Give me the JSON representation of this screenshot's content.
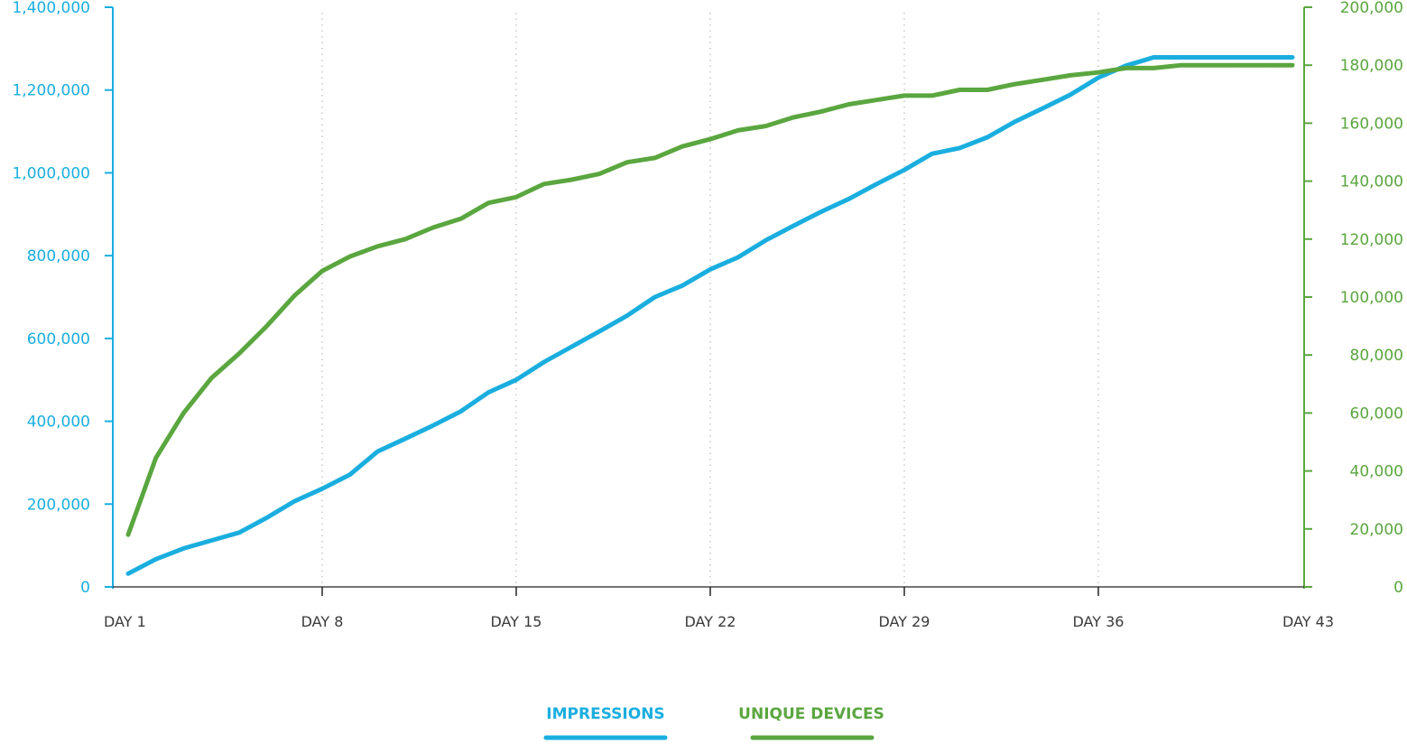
{
  "colors": {
    "impressions": "#1aaedf",
    "unique_devices": "#5aa63f",
    "axis_x_text": "#3a3a3a",
    "grid": "#bbbbbb"
  },
  "legend": {
    "impressions": "IMPRESSIONS",
    "unique_devices": "UNIQUE DEVICES"
  },
  "chart_data": {
    "type": "line",
    "title": "",
    "xlabel": "",
    "grid": "vertical dotted",
    "legend_position": "bottom",
    "x": [
      1,
      2,
      3,
      4,
      5,
      6,
      7,
      8,
      9,
      10,
      11,
      12,
      13,
      14,
      15,
      16,
      17,
      18,
      19,
      20,
      21,
      22,
      23,
      24,
      25,
      26,
      27,
      28,
      29,
      30,
      31,
      32,
      33,
      34,
      35,
      36,
      37,
      38,
      39,
      40,
      41,
      42,
      43
    ],
    "x_ticks": [
      {
        "day": 1,
        "label": "DAY 1"
      },
      {
        "day": 8,
        "label": "DAY 8"
      },
      {
        "day": 15,
        "label": "DAY 15"
      },
      {
        "day": 22,
        "label": "DAY 22"
      },
      {
        "day": 29,
        "label": "DAY 29"
      },
      {
        "day": 36,
        "label": "DAY 36"
      },
      {
        "day": 43,
        "label": "DAY 43"
      }
    ],
    "xlim": [
      1,
      43
    ],
    "y_left": {
      "lim": [
        0,
        1400000
      ],
      "ticks": [
        "0",
        "200,000",
        "400,000",
        "600,000",
        "800,000",
        "1,000,000",
        "1,200,000",
        "1,400,000"
      ],
      "tick_values": [
        0,
        200000,
        400000,
        600000,
        800000,
        1000000,
        1200000,
        1400000
      ]
    },
    "y_right": {
      "lim": [
        0,
        200000
      ],
      "ticks": [
        "0",
        "20,000",
        "40,000",
        "60,000",
        "80,000",
        "100,000",
        "120,000",
        "140,000",
        "160,000",
        "180,000",
        "200,000"
      ],
      "tick_values": [
        0,
        20000,
        40000,
        60000,
        80000,
        100000,
        120000,
        140000,
        160000,
        180000,
        200000
      ]
    },
    "series": [
      {
        "name": "IMPRESSIONS",
        "axis": "left",
        "values": [
          32000,
          67000,
          93000,
          112000,
          131000,
          167000,
          207000,
          237000,
          271000,
          327000,
          358000,
          390000,
          424000,
          470000,
          500000,
          543000,
          580000,
          617000,
          655000,
          700000,
          728000,
          767000,
          796000,
          837000,
          872000,
          906000,
          937000,
          973000,
          1007000,
          1046000,
          1060000,
          1086000,
          1124000,
          1156000,
          1189000,
          1230000,
          1259000,
          1279000,
          1279000,
          1279000,
          1279000,
          1279000,
          1279000
        ]
      },
      {
        "name": "UNIQUE DEVICES",
        "axis": "right",
        "values": [
          18000,
          44500,
          60000,
          72000,
          80500,
          90000,
          100500,
          109000,
          114000,
          117500,
          120000,
          124000,
          127000,
          132500,
          134500,
          139000,
          140500,
          142500,
          146500,
          148000,
          152000,
          154500,
          157500,
          159000,
          162000,
          164000,
          166500,
          168000,
          169500,
          169500,
          171500,
          171500,
          173500,
          175000,
          176500,
          177500,
          179000,
          179000,
          180000,
          180000,
          180000,
          180000,
          180000
        ]
      }
    ]
  }
}
